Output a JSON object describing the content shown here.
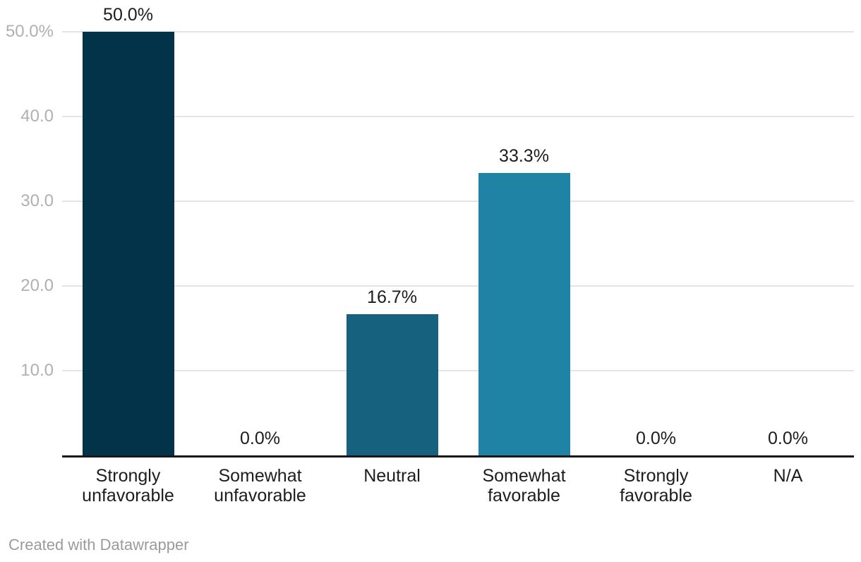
{
  "chart": {
    "title": "",
    "footer": {
      "attribution": "Created with Datawrapper"
    },
    "colors": {
      "background": "#ffffff",
      "gridline": "#e3e3e3",
      "baseline": "#18181b",
      "axis_tick_text": "#b0b0b0",
      "label_text": "#1d1d1f",
      "footer_text": "#9b9b9b"
    }
  },
  "chart_data": {
    "type": "bar",
    "title": "",
    "xlabel": "",
    "ylabel": "",
    "categories": [
      "Strongly unfavorable",
      "Somewhat unfavorable",
      "Neutral",
      "Somewhat favorable",
      "Strongly favorable",
      "N/A"
    ],
    "values": [
      50.0,
      0.0,
      16.7,
      33.3,
      0.0,
      0.0
    ],
    "value_labels": [
      "50.0%",
      "0.0%",
      "16.7%",
      "33.3%",
      "0.0%",
      "0.0%"
    ],
    "bar_colors": [
      "#033349",
      null,
      "#15617E",
      "#1F83A5",
      null,
      null
    ],
    "yticks": [
      {
        "value": 50,
        "label": "50.0%"
      },
      {
        "value": 40,
        "label": "40.0"
      },
      {
        "value": 30,
        "label": "30.0"
      },
      {
        "value": 20,
        "label": "20.0"
      },
      {
        "value": 10,
        "label": "10.0"
      }
    ],
    "ylim": [
      0,
      50
    ],
    "grid": true,
    "legend": "none"
  }
}
